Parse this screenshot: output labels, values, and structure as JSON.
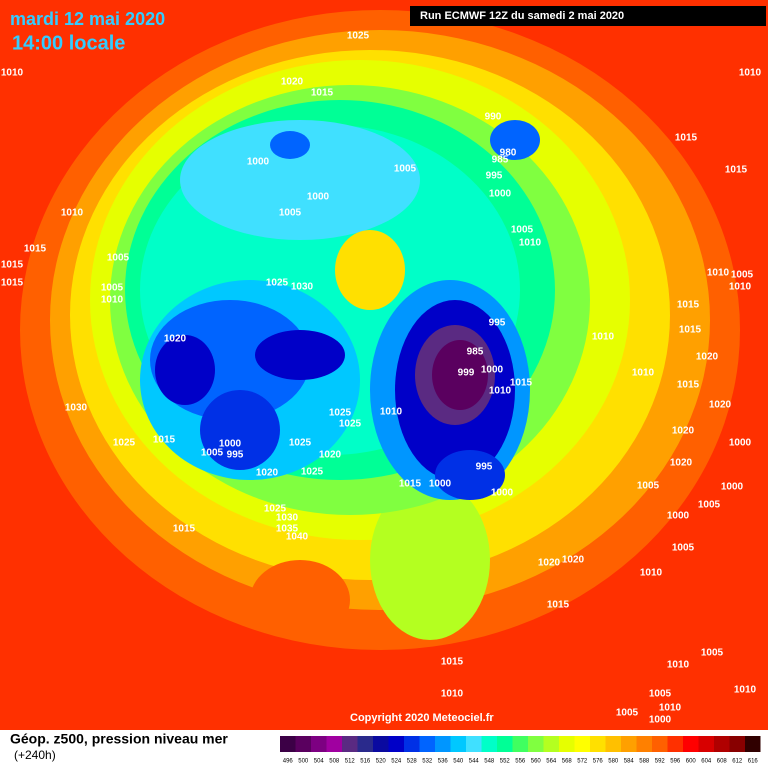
{
  "header": {
    "date": "mardi 12 mai 2020",
    "time": "14:00 locale",
    "run": "Run ECMWF 12Z du samedi 2 mai 2020"
  },
  "copyright": "Copyright 2020 Meteociel.fr",
  "legend": {
    "title": "Géop. z500, pression niveau mer",
    "lead": "(+240h)",
    "values": [
      496,
      500,
      504,
      508,
      512,
      516,
      520,
      524,
      528,
      532,
      536,
      540,
      544,
      548,
      552,
      556,
      560,
      564,
      568,
      572,
      576,
      580,
      584,
      588,
      592,
      596,
      600,
      604,
      608,
      612,
      616
    ],
    "colors": [
      "#3c0046",
      "#5a005f",
      "#7d0082",
      "#a000a0",
      "#5a2a82",
      "#2a2a8c",
      "#0a0aa0",
      "#0000c8",
      "#0030e6",
      "#0064ff",
      "#0096ff",
      "#00c8ff",
      "#40e0ff",
      "#00ffc8",
      "#00ff96",
      "#40ff60",
      "#80ff40",
      "#b4ff20",
      "#e6ff00",
      "#ffff00",
      "#ffe000",
      "#ffc000",
      "#ffa000",
      "#ff8000",
      "#ff6000",
      "#ff3000",
      "#ff0000",
      "#d80000",
      "#b00000",
      "#880000",
      "#300000"
    ]
  },
  "isobar_labels": [
    1025,
    1010,
    1010,
    1020,
    1015,
    990,
    980,
    985,
    1015,
    1000,
    1005,
    995,
    1015,
    1000,
    1000,
    1005,
    1010,
    1005,
    1010,
    1015,
    1015,
    1005,
    1015,
    1010,
    1005,
    1010,
    1005,
    1010,
    1025,
    1030,
    1015,
    995,
    1010,
    1015,
    1020,
    985,
    1020,
    999,
    1000,
    1015,
    1010,
    1015,
    1010,
    1030,
    1025,
    1010,
    1025,
    1020,
    1025,
    1015,
    1000,
    1005,
    995,
    1025,
    1020,
    1000,
    1020,
    995,
    1020,
    1025,
    1020,
    1015,
    1000,
    1000,
    1005,
    1000,
    1025,
    1030,
    1015,
    1035,
    1040,
    1005,
    1000,
    1005,
    1020,
    1020,
    1010,
    1015,
    1005,
    1015,
    1010,
    1010,
    1005,
    1010,
    1005,
    1000,
    1010
  ]
}
